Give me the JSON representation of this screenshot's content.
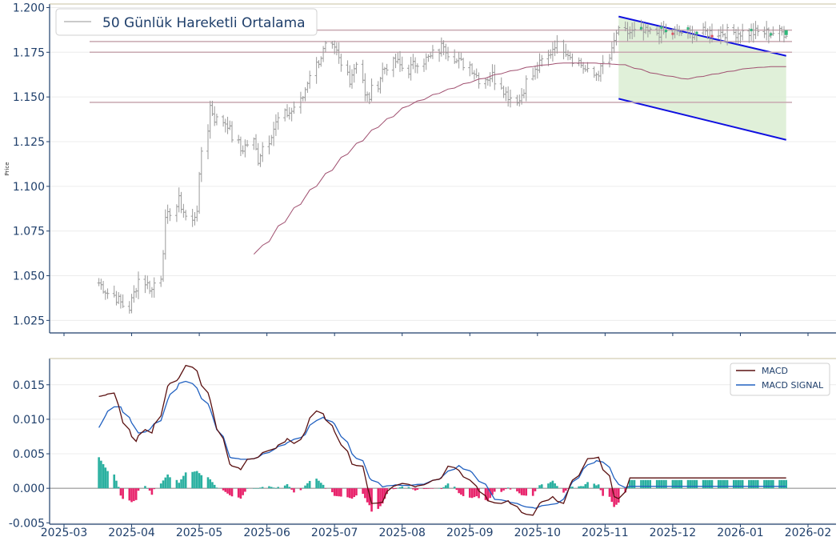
{
  "chart_data": [
    {
      "type": "candlestick",
      "panel": "price",
      "ylabel": "Price",
      "ylim": [
        1.018,
        1.202
      ],
      "yticks": [
        "1.025",
        "1.050",
        "1.075",
        "1.100",
        "1.125",
        "1.150",
        "1.175",
        "1.200"
      ],
      "xticks": [
        "2025-03",
        "2025-04",
        "2025-05",
        "2025-06",
        "2025-07",
        "2025-08",
        "2025-09",
        "2025-10",
        "2025-11",
        "2025-12",
        "2026-01",
        "2026-02"
      ],
      "legend": [
        "50 Günlük Hareketli Ortalama"
      ],
      "legend_position": "top-left",
      "series": [
        {
          "name": "Close",
          "x_start": "2025-03-17",
          "x_end": "2026-01-22",
          "anchors": [
            [
              0,
              1.046
            ],
            [
              10,
              1.032
            ],
            [
              14,
              1.048
            ],
            [
              18,
              1.042
            ],
            [
              20,
              1.05
            ],
            [
              22,
              1.08
            ],
            [
              26,
              1.092
            ],
            [
              30,
              1.08
            ],
            [
              32,
              1.088
            ],
            [
              34,
              1.12
            ],
            [
              36,
              1.145
            ],
            [
              38,
              1.138
            ],
            [
              42,
              1.135
            ],
            [
              46,
              1.12
            ],
            [
              50,
              1.125
            ],
            [
              52,
              1.115
            ],
            [
              56,
              1.13
            ],
            [
              60,
              1.14
            ],
            [
              63,
              1.142
            ],
            [
              66,
              1.15
            ],
            [
              70,
              1.168
            ],
            [
              74,
              1.178
            ],
            [
              77,
              1.174
            ],
            [
              81,
              1.16
            ],
            [
              84,
              1.17
            ],
            [
              86,
              1.15
            ],
            [
              88,
              1.15
            ],
            [
              92,
              1.165
            ],
            [
              96,
              1.17
            ],
            [
              100,
              1.165
            ],
            [
              104,
              1.17
            ],
            [
              108,
              1.172
            ],
            [
              112,
              1.18
            ],
            [
              116,
              1.17
            ],
            [
              120,
              1.168
            ],
            [
              124,
              1.16
            ],
            [
              128,
              1.162
            ],
            [
              132,
              1.152
            ],
            [
              136,
              1.148
            ],
            [
              140,
              1.162
            ],
            [
              144,
              1.17
            ],
            [
              148,
              1.18
            ],
            [
              152,
              1.175
            ],
            [
              156,
              1.168
            ],
            [
              160,
              1.162
            ],
            [
              163,
              1.165
            ],
            [
              166,
              1.175
            ],
            [
              168,
              1.186
            ]
          ]
        },
        {
          "name": "50 Günlük Hareketli Ortalama",
          "x_start": "2025-05-26",
          "x_end": "2026-01-22",
          "anchors": [
            [
              0,
              1.062
            ],
            [
              4,
              1.067
            ],
            [
              10,
              1.08
            ],
            [
              20,
              1.1
            ],
            [
              30,
              1.118
            ],
            [
              40,
              1.133
            ],
            [
              50,
              1.145
            ],
            [
              60,
              1.152
            ],
            [
              70,
              1.158
            ],
            [
              80,
              1.163
            ],
            [
              90,
              1.167
            ],
            [
              100,
              1.169
            ],
            [
              110,
              1.169
            ],
            [
              120,
              1.168
            ],
            [
              130,
              1.163
            ],
            [
              140,
              1.16
            ],
            [
              150,
              1.163
            ],
            [
              160,
              1.166
            ],
            [
              168,
              1.167
            ]
          ]
        }
      ],
      "levels": [
        1.1874,
        1.181,
        1.175,
        1.147
      ],
      "channel": {
        "upper": [
          1.195,
          1.173
        ],
        "lower": [
          1.149,
          1.126
        ],
        "x_range": [
          "2025-11-07",
          "2026-01-22"
        ]
      },
      "colors": {
        "bar": "#9a9a9a",
        "ma": "#a05070",
        "level": "#c8a8b0",
        "channel_line": "#1010e0",
        "channel_fill": "#d8ecd0",
        "up_marker": "#2eb87a",
        "down_marker": "#e05060"
      }
    },
    {
      "type": "macd",
      "panel": "indicator",
      "ylim": [
        -0.0052,
        0.0188
      ],
      "yticks": [
        "-0.005",
        "0.000",
        "0.005",
        "0.010",
        "0.015"
      ],
      "xticks": [
        "2025-03",
        "2025-04",
        "2025-05",
        "2025-06",
        "2025-07",
        "2025-08",
        "2025-09",
        "2025-10",
        "2025-11",
        "2025-12",
        "2026-01",
        "2026-02"
      ],
      "legend": [
        "MACD",
        "MACD SIGNAL"
      ],
      "legend_position": "top-right",
      "series": [
        {
          "name": "MACD",
          "x_start": "2025-03-17",
          "x_end": "2026-01-22",
          "anchors": [
            [
              0,
              0.0133
            ],
            [
              3,
              0.0135
            ],
            [
              5,
              0.0138
            ],
            [
              7,
              0.012
            ],
            [
              9,
              0.0095
            ],
            [
              11,
              0.0075
            ],
            [
              13,
              0.0068
            ],
            [
              15,
              0.0085
            ],
            [
              18,
              0.008
            ],
            [
              20,
              0.0105
            ],
            [
              23,
              0.0148
            ],
            [
              26,
              0.016
            ],
            [
              29,
              0.0178
            ],
            [
              32,
              0.017
            ],
            [
              36,
              0.0128
            ],
            [
              40,
              0.0072
            ],
            [
              43,
              0.0035
            ],
            [
              46,
              0.0027
            ],
            [
              49,
              0.0042
            ],
            [
              52,
              0.0045
            ],
            [
              55,
              0.0055
            ],
            [
              58,
              0.0058
            ],
            [
              61,
              0.0072
            ],
            [
              64,
              0.0065
            ],
            [
              67,
              0.0082
            ],
            [
              70,
              0.0112
            ],
            [
              73,
              0.0108
            ],
            [
              76,
              0.0082
            ],
            [
              79,
              0.0063
            ],
            [
              82,
              0.0035
            ],
            [
              85,
              0.0032
            ],
            [
              87,
              0.0003
            ],
            [
              89,
              -0.0022
            ],
            [
              92,
              -0.002
            ],
            [
              95,
              0.0003
            ],
            [
              99,
              0.0007
            ],
            [
              103,
              0.0002
            ],
            [
              107,
              0.0008
            ],
            [
              111,
              0.0015
            ],
            [
              114,
              0.0032
            ],
            [
              117,
              0.0026
            ],
            [
              120,
              0.0012
            ],
            [
              123,
              0.0003
            ],
            [
              126,
              -0.0018
            ],
            [
              130,
              -0.0022
            ],
            [
              133,
              -0.0018
            ],
            [
              137,
              -0.0035
            ],
            [
              140,
              -0.0039
            ],
            [
              143,
              -0.0022
            ],
            [
              147,
              -0.0012
            ],
            [
              150,
              -0.0022
            ],
            [
              153,
              0.0005
            ],
            [
              156,
              0.0025
            ],
            [
              159,
              0.0043
            ],
            [
              162,
              0.0045
            ],
            [
              165,
              0.0018
            ],
            [
              167,
              -0.0012
            ],
            [
              169,
              -0.0015
            ],
            [
              172,
              0.0015
            ]
          ]
        },
        {
          "name": "MACD SIGNAL",
          "x_start": "2025-03-17",
          "x_end": "2026-01-22",
          "anchors": [
            [
              0,
              0.0088
            ],
            [
              3,
              0.0105
            ],
            [
              5,
              0.0118
            ],
            [
              8,
              0.0118
            ],
            [
              11,
              0.0095
            ],
            [
              14,
              0.008
            ],
            [
              17,
              0.0085
            ],
            [
              20,
              0.0098
            ],
            [
              23,
              0.0128
            ],
            [
              26,
              0.0152
            ],
            [
              29,
              0.0155
            ],
            [
              32,
              0.0145
            ],
            [
              36,
              0.0115
            ],
            [
              40,
              0.0075
            ],
            [
              43,
              0.0045
            ],
            [
              46,
              0.0042
            ],
            [
              49,
              0.0042
            ],
            [
              52,
              0.0045
            ],
            [
              55,
              0.0052
            ],
            [
              58,
              0.0058
            ],
            [
              61,
              0.0066
            ],
            [
              64,
              0.0071
            ],
            [
              67,
              0.0078
            ],
            [
              70,
              0.0098
            ],
            [
              73,
              0.0103
            ],
            [
              76,
              0.0093
            ],
            [
              79,
              0.0075
            ],
            [
              82,
              0.005
            ],
            [
              85,
              0.004
            ],
            [
              88,
              0.0015
            ],
            [
              92,
              0.0002
            ],
            [
              96,
              0.0005
            ],
            [
              100,
              0.0004
            ],
            [
              105,
              0.0006
            ],
            [
              110,
              0.0013
            ],
            [
              114,
              0.0025
            ],
            [
              117,
              0.0033
            ],
            [
              121,
              0.0023
            ],
            [
              125,
              0.0006
            ],
            [
              129,
              -0.0016
            ],
            [
              133,
              -0.0019
            ],
            [
              137,
              -0.0025
            ],
            [
              141,
              -0.0029
            ],
            [
              145,
              -0.0024
            ],
            [
              149,
              -0.0022
            ],
            [
              153,
              0.0003
            ],
            [
              157,
              0.0028
            ],
            [
              161,
              0.004
            ],
            [
              164,
              0.0038
            ],
            [
              167,
              0.0015
            ],
            [
              170,
              0.0001
            ],
            [
              172,
              0.0003
            ]
          ]
        },
        {
          "name": "MACD Histogram",
          "color_pos": "#2ab0a0",
          "color_neg": "#e8246c"
        }
      ],
      "colors": {
        "macd": "#5a1010",
        "signal": "#2060c0",
        "zero": "#888888"
      }
    }
  ]
}
